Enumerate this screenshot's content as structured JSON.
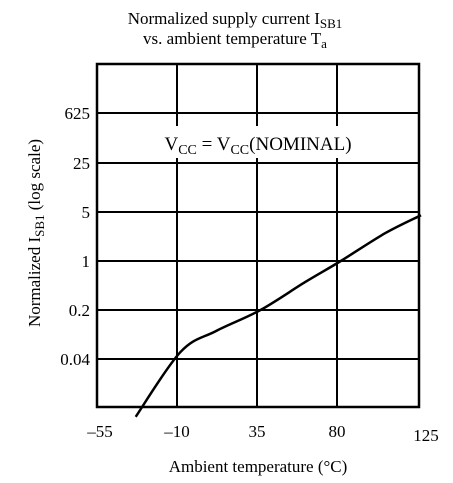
{
  "chart_data": {
    "type": "line",
    "title_line1": {
      "text": "Normalized supply current I",
      "sub": "SB1"
    },
    "title_line2": {
      "text": "vs. ambient temperature T",
      "sub": "a"
    },
    "xlabel": "Ambient temperature (°C)",
    "ylabel": {
      "prefix": "Normalized I",
      "sub": "SB1",
      "suffix": " (log scale)"
    },
    "annotation": {
      "v1": "V",
      "s1": "CC",
      "mid": " = V",
      "s2": "CC",
      "tail": "(NOMINAL)"
    },
    "x_ticks": [
      "–55",
      "–10",
      "35",
      "80",
      "125"
    ],
    "y_ticks": [
      "625",
      "25",
      "5",
      "1",
      "0.2",
      "0.04"
    ],
    "y_scale": "log",
    "grid": true,
    "xlim": [
      -55,
      125
    ],
    "series": [
      {
        "x": [
          -35,
          -10,
          10,
          35,
          60,
          80,
          105,
          125
        ],
        "y": [
          0.006,
          0.05,
          0.1,
          0.2,
          0.5,
          1.0,
          2.5,
          4.5
        ]
      }
    ]
  }
}
